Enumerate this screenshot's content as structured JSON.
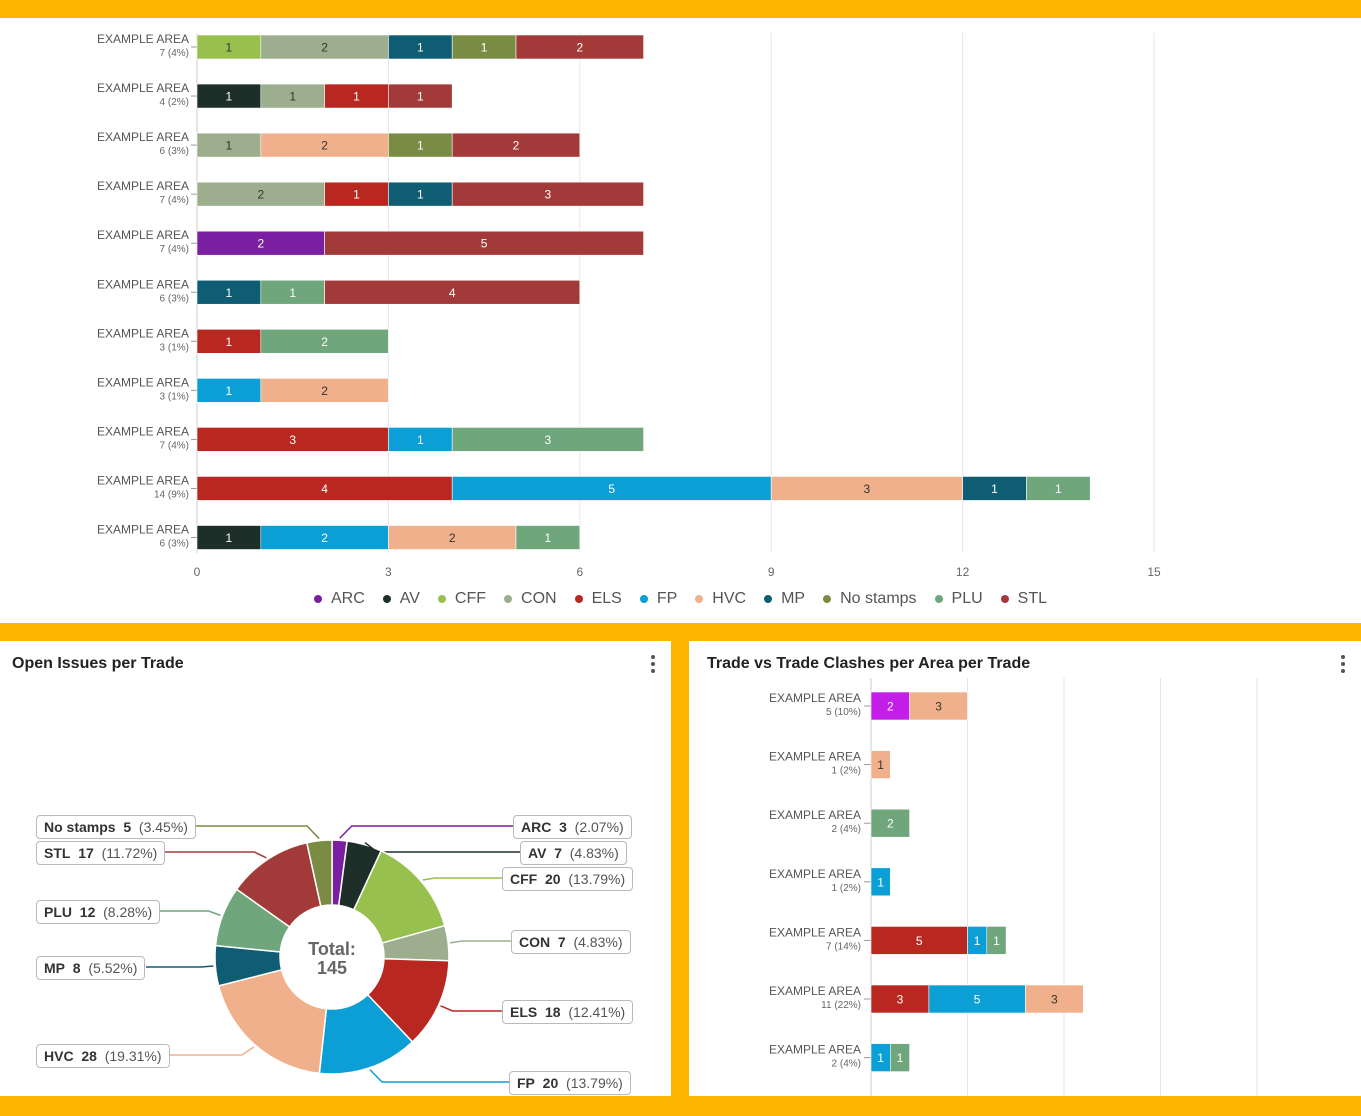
{
  "colors": {
    "ARC": "#7B1FA2",
    "AV": "#1E2E28",
    "CFF": "#97C04E",
    "CON": "#9CAE8E",
    "ELS": "#B92721",
    "FP": "#0B9FD6",
    "HVC": "#F1B08C",
    "MP": "#0F5D73",
    "No stamps": "#7A8B44",
    "PLU": "#6FA67C",
    "STL": "#A33A3A"
  },
  "top_chart": {
    "chart_data": {
      "type": "bar",
      "orientation": "horizontal",
      "stacked": true,
      "xlim": [
        0,
        15
      ],
      "xticks": [
        "0",
        "3",
        "6",
        "9",
        "12",
        "15"
      ],
      "legend": [
        "ARC",
        "AV",
        "CFF",
        "CON",
        "ELS",
        "FP",
        "HVC",
        "MP",
        "No stamps",
        "PLU",
        "STL"
      ],
      "rows": [
        {
          "label": "EXAMPLE AREA",
          "sub": "7 (4%)",
          "segments": [
            {
              "trade": "CFF",
              "value": 1
            },
            {
              "trade": "CON",
              "value": 2
            },
            {
              "trade": "MP",
              "value": 1
            },
            {
              "trade": "No stamps",
              "value": 1
            },
            {
              "trade": "STL",
              "value": 2
            }
          ]
        },
        {
          "label": "EXAMPLE AREA",
          "sub": "4 (2%)",
          "segments": [
            {
              "trade": "AV",
              "value": 1
            },
            {
              "trade": "CON",
              "value": 1
            },
            {
              "trade": "ELS",
              "value": 1
            },
            {
              "trade": "STL",
              "value": 1
            }
          ]
        },
        {
          "label": "EXAMPLE AREA",
          "sub": "6 (3%)",
          "segments": [
            {
              "trade": "CON",
              "value": 1
            },
            {
              "trade": "HVC",
              "value": 2
            },
            {
              "trade": "No stamps",
              "value": 1
            },
            {
              "trade": "STL",
              "value": 2
            }
          ]
        },
        {
          "label": "EXAMPLE AREA",
          "sub": "7 (4%)",
          "segments": [
            {
              "trade": "CON",
              "value": 2
            },
            {
              "trade": "ELS",
              "value": 1
            },
            {
              "trade": "MP",
              "value": 1
            },
            {
              "trade": "STL",
              "value": 3
            }
          ]
        },
        {
          "label": "EXAMPLE AREA",
          "sub": "7 (4%)",
          "segments": [
            {
              "trade": "ARC",
              "value": 2
            },
            {
              "trade": "STL",
              "value": 5
            }
          ]
        },
        {
          "label": "EXAMPLE AREA",
          "sub": "6 (3%)",
          "segments": [
            {
              "trade": "MP",
              "value": 1
            },
            {
              "trade": "PLU",
              "value": 1
            },
            {
              "trade": "STL",
              "value": 4
            }
          ]
        },
        {
          "label": "EXAMPLE AREA",
          "sub": "3 (1%)",
          "segments": [
            {
              "trade": "ELS",
              "value": 1
            },
            {
              "trade": "PLU",
              "value": 2
            }
          ]
        },
        {
          "label": "EXAMPLE AREA",
          "sub": "3 (1%)",
          "segments": [
            {
              "trade": "FP",
              "value": 1
            },
            {
              "trade": "HVC",
              "value": 2
            }
          ]
        },
        {
          "label": "EXAMPLE AREA",
          "sub": "7 (4%)",
          "segments": [
            {
              "trade": "ELS",
              "value": 3
            },
            {
              "trade": "FP",
              "value": 1
            },
            {
              "trade": "PLU",
              "value": 3
            }
          ]
        },
        {
          "label": "EXAMPLE AREA",
          "sub": "14 (9%)",
          "segments": [
            {
              "trade": "ELS",
              "value": 4
            },
            {
              "trade": "FP",
              "value": 5
            },
            {
              "trade": "HVC",
              "value": 3
            },
            {
              "trade": "MP",
              "value": 1
            },
            {
              "trade": "PLU",
              "value": 1
            }
          ]
        },
        {
          "label": "EXAMPLE AREA",
          "sub": "6 (3%)",
          "segments": [
            {
              "trade": "AV",
              "value": 1
            },
            {
              "trade": "FP",
              "value": 2
            },
            {
              "trade": "HVC",
              "value": 2
            },
            {
              "trade": "PLU",
              "value": 1
            }
          ]
        }
      ]
    }
  },
  "donut_panel": {
    "title": "Open Issues per Trade",
    "chart_data": {
      "type": "pie",
      "donut": true,
      "center_label": "Total:",
      "total": "145",
      "slices": [
        {
          "trade": "ARC",
          "value": 3,
          "pct": "(2.07%)"
        },
        {
          "trade": "AV",
          "value": 7,
          "pct": "(4.83%)"
        },
        {
          "trade": "CFF",
          "value": 20,
          "pct": "(13.79%)"
        },
        {
          "trade": "CON",
          "value": 7,
          "pct": "(4.83%)"
        },
        {
          "trade": "ELS",
          "value": 18,
          "pct": "(12.41%)"
        },
        {
          "trade": "FP",
          "value": 20,
          "pct": "(13.79%)"
        },
        {
          "trade": "HVC",
          "value": 28,
          "pct": "(19.31%)"
        },
        {
          "trade": "MP",
          "value": 8,
          "pct": "(5.52%)"
        },
        {
          "trade": "PLU",
          "value": 12,
          "pct": "(8.28%)"
        },
        {
          "trade": "STL",
          "value": 17,
          "pct": "(11.72%)"
        },
        {
          "trade": "No stamps",
          "value": 5,
          "pct": "(3.45%)"
        }
      ]
    }
  },
  "clash_panel": {
    "title": "Trade vs Trade Clashes per Area per Trade",
    "chart_data": {
      "type": "bar",
      "orientation": "horizontal",
      "stacked": true,
      "xlim": [
        0,
        20
      ],
      "rows": [
        {
          "label": "EXAMPLE AREA",
          "sub": "5 (10%)",
          "segments": [
            {
              "trade": "ARC",
              "value": 2,
              "color": "#C21EE8"
            },
            {
              "trade": "HVC",
              "value": 3
            }
          ]
        },
        {
          "label": "EXAMPLE AREA",
          "sub": "1 (2%)",
          "segments": [
            {
              "trade": "HVC",
              "value": 1
            }
          ]
        },
        {
          "label": "EXAMPLE AREA",
          "sub": "2 (4%)",
          "segments": [
            {
              "trade": "PLU",
              "value": 2
            }
          ]
        },
        {
          "label": "EXAMPLE AREA",
          "sub": "1 (2%)",
          "segments": [
            {
              "trade": "FP",
              "value": 1
            }
          ]
        },
        {
          "label": "EXAMPLE AREA",
          "sub": "7 (14%)",
          "segments": [
            {
              "trade": "ELS",
              "value": 5
            },
            {
              "trade": "FP",
              "value": 1
            },
            {
              "trade": "PLU",
              "value": 1
            }
          ]
        },
        {
          "label": "EXAMPLE AREA",
          "sub": "11 (22%)",
          "segments": [
            {
              "trade": "ELS",
              "value": 3
            },
            {
              "trade": "FP",
              "value": 5
            },
            {
              "trade": "HVC",
              "value": 3
            }
          ]
        },
        {
          "label": "EXAMPLE AREA",
          "sub": "2 (4%)",
          "segments": [
            {
              "trade": "FP",
              "value": 1
            },
            {
              "trade": "PLU",
              "value": 1
            }
          ]
        }
      ]
    }
  }
}
